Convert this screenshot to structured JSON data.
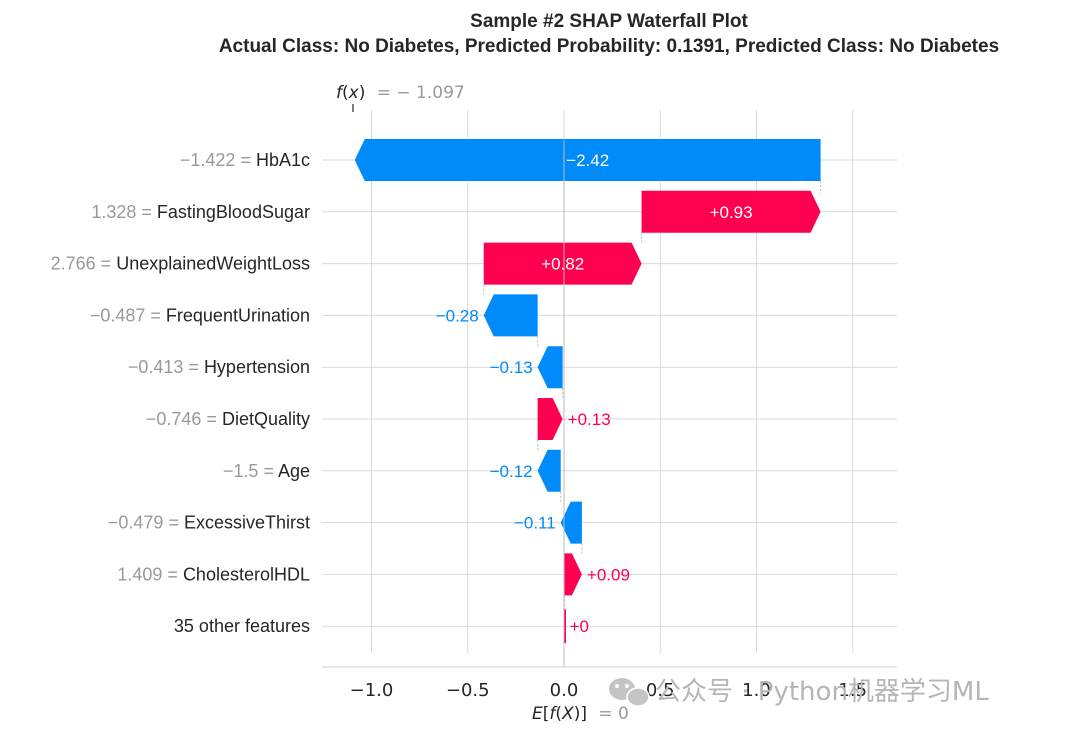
{
  "chart_data": {
    "type": "waterfall",
    "title": "Sample #2 SHAP Waterfall Plot",
    "subtitle": "Actual Class: No Diabetes, Predicted Probability: 0.1391, Predicted Class: No Diabetes",
    "base_value": 0,
    "base_value_label": "= 0",
    "output_value": -1.097,
    "output_value_label": "= − 1.097",
    "x_ticks": [
      -1.0,
      -0.5,
      0.0,
      0.5,
      1.0,
      1.5
    ],
    "x_tick_labels": [
      "−1.0",
      "−0.5",
      "0.0",
      "0.5",
      "1.0",
      "1.5"
    ],
    "xlim": [
      -1.265,
      1.73
    ],
    "features": [
      {
        "value_label": "−1.422",
        "name": "HbA1c",
        "shap": -2.42,
        "label": "−2.42"
      },
      {
        "value_label": "1.328",
        "name": "FastingBloodSugar",
        "shap": 0.93,
        "label": "+0.93"
      },
      {
        "value_label": "2.766",
        "name": "UnexplainedWeightLoss",
        "shap": 0.82,
        "label": "+0.82"
      },
      {
        "value_label": "−0.487",
        "name": "FrequentUrination",
        "shap": -0.28,
        "label": "−0.28"
      },
      {
        "value_label": "−0.413",
        "name": "Hypertension",
        "shap": -0.13,
        "label": "−0.13"
      },
      {
        "value_label": "−0.746",
        "name": "DietQuality",
        "shap": 0.13,
        "label": "+0.13"
      },
      {
        "value_label": "−1.5",
        "name": "Age",
        "shap": -0.12,
        "label": "−0.12"
      },
      {
        "value_label": "−0.479",
        "name": "ExcessiveThirst",
        "shap": -0.11,
        "label": "−0.11"
      },
      {
        "value_label": "1.409",
        "name": "CholesterolHDL",
        "shap": 0.09,
        "label": "+0.09"
      },
      {
        "value_label": "",
        "name": "35 other features",
        "shap": 0.003,
        "label": "+0"
      }
    ],
    "colors": {
      "positive": "#ff0051",
      "negative": "#008bfb",
      "text": "#262626",
      "muted": "#999999",
      "grid": "#d9d9d9"
    },
    "grid": true
  },
  "watermark": {
    "text": "公众号 · Python机器学习ML"
  }
}
